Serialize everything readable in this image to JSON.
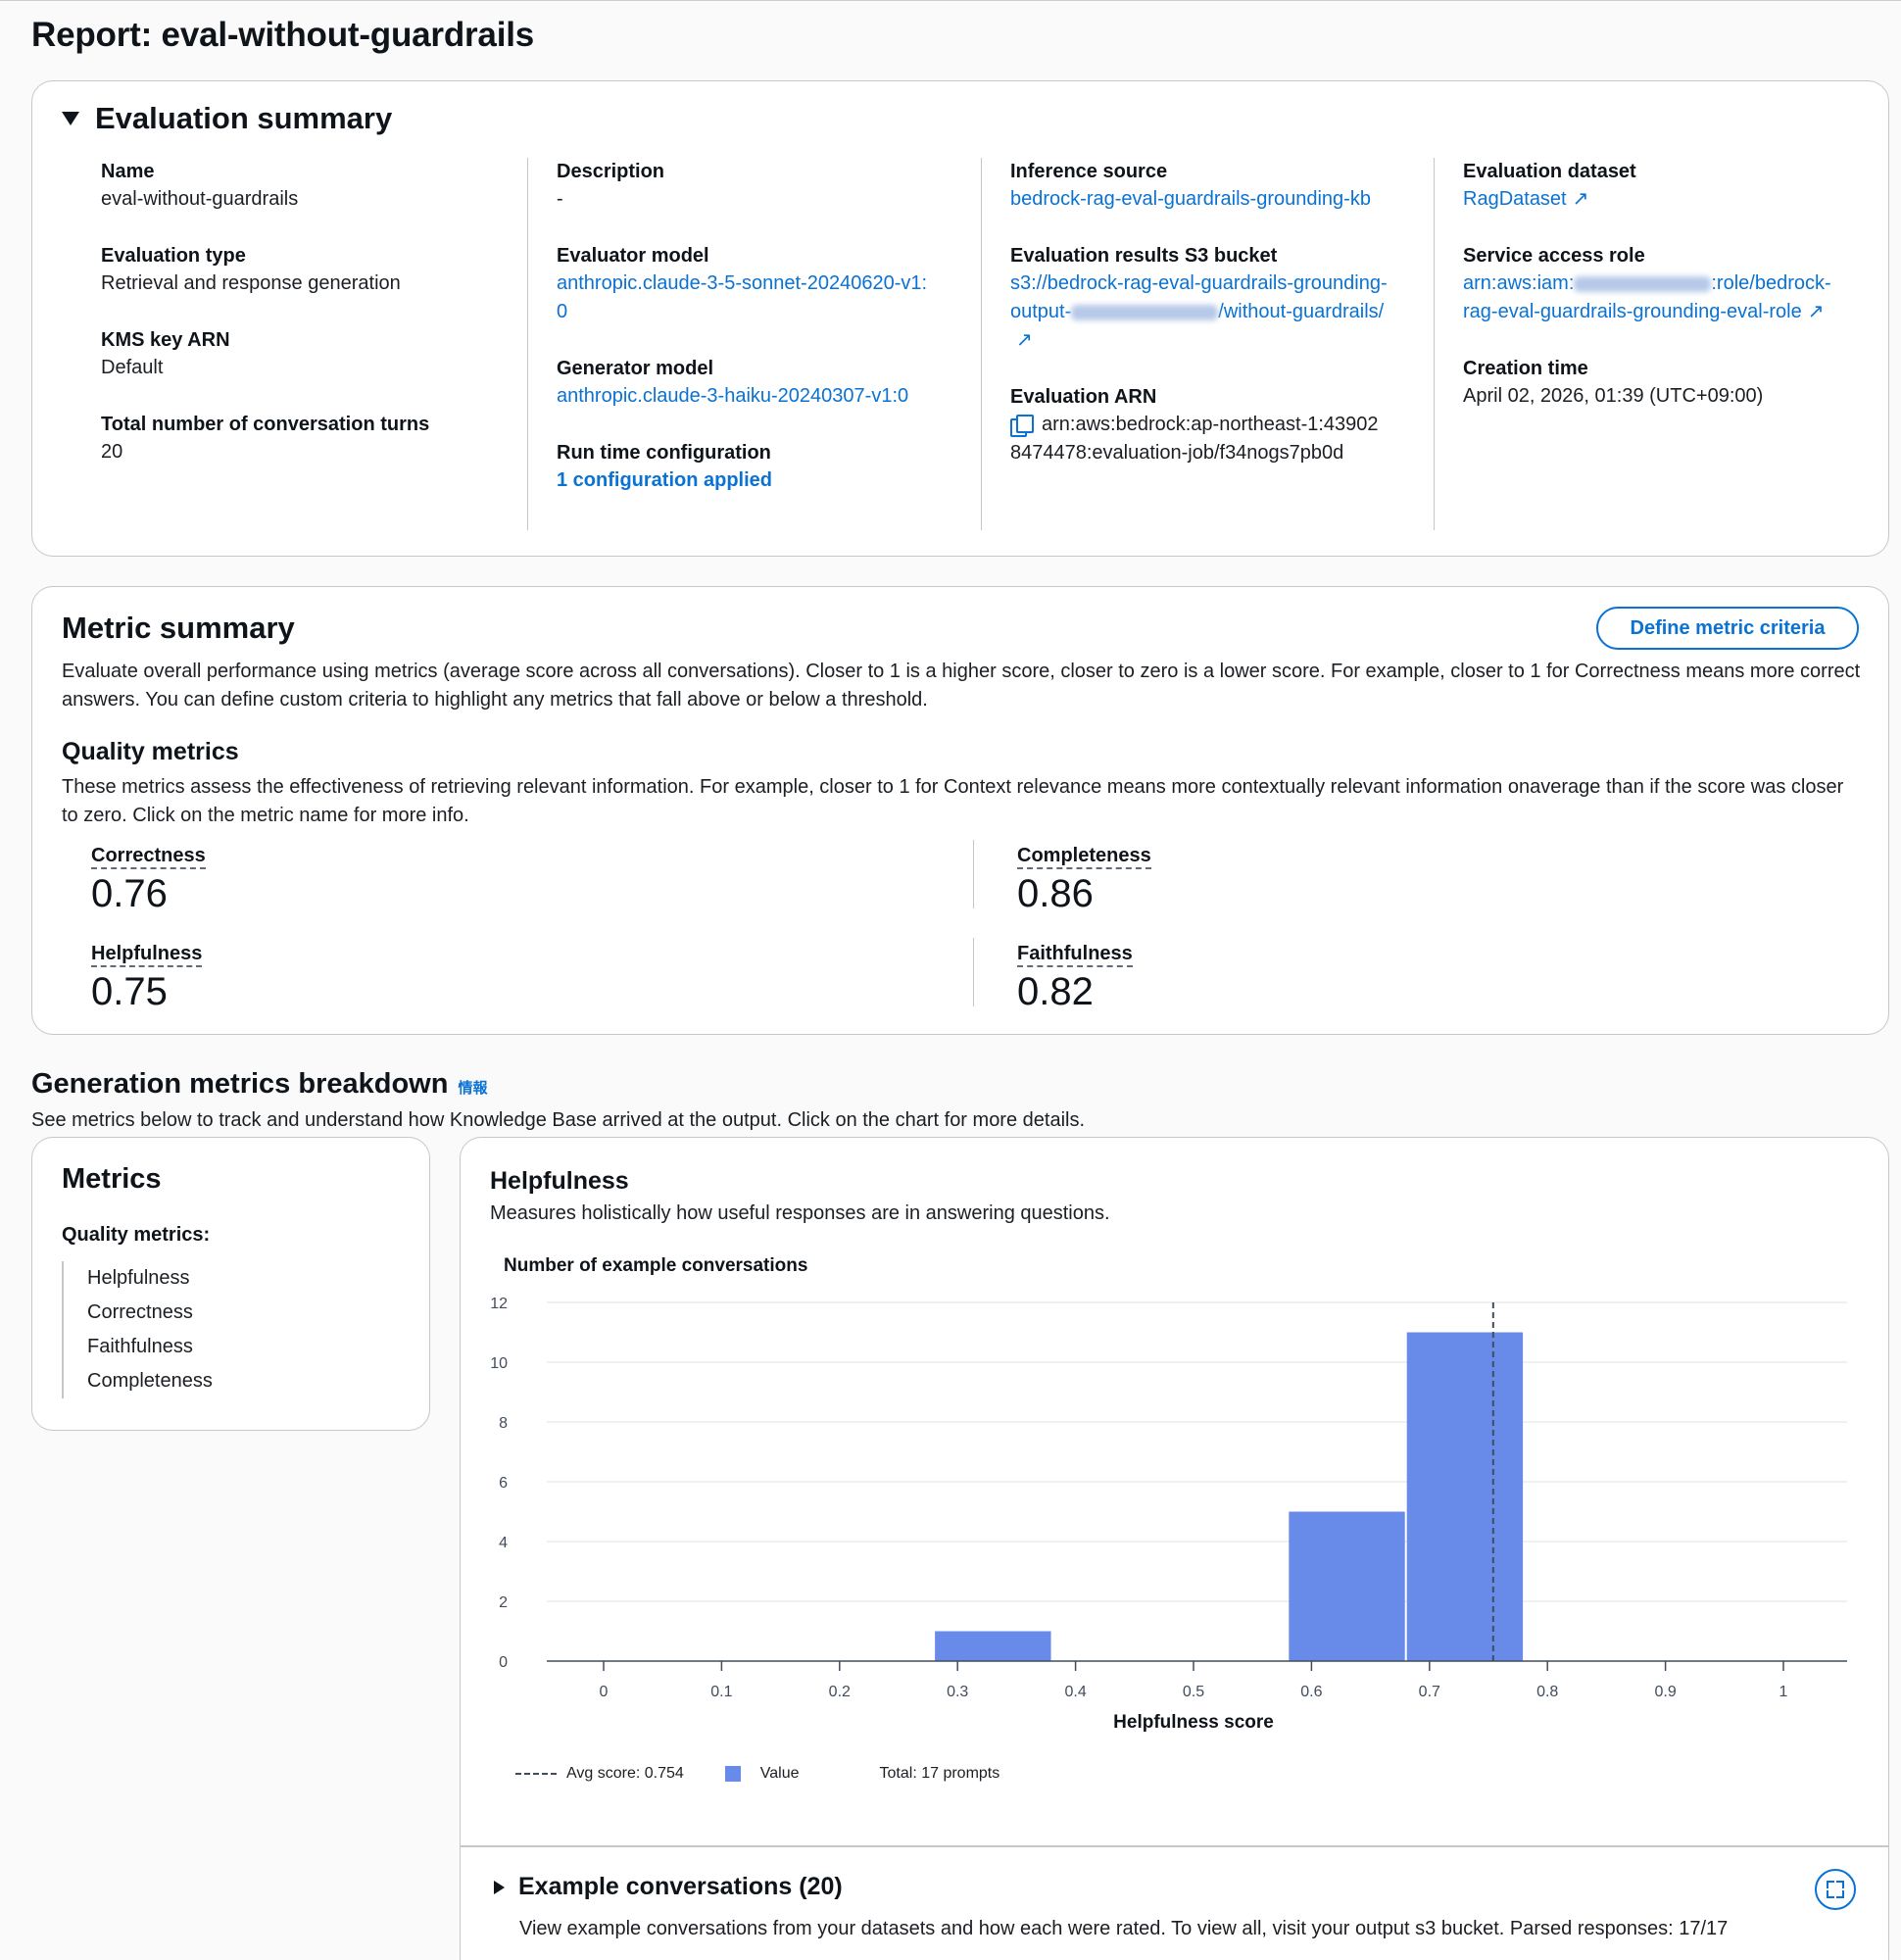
{
  "page": {
    "title": "Report: eval-without-guardrails"
  },
  "evaluation_summary": {
    "title": "Evaluation summary",
    "name_label": "Name",
    "name_value": "eval-without-guardrails",
    "type_label": "Evaluation type",
    "type_value": "Retrieval and response generation",
    "kms_label": "KMS key ARN",
    "kms_value": "Default",
    "turns_label": "Total number of conversation turns",
    "turns_value": "20",
    "description_label": "Description",
    "description_value": "-",
    "evaluator_label": "Evaluator model",
    "evaluator_value": "anthropic.claude-3-5-sonnet-20240620-v1:0",
    "generator_label": "Generator model",
    "generator_value": "anthropic.claude-3-haiku-20240307-v1:0",
    "runtime_label": "Run time configuration",
    "runtime_value": "1 configuration applied",
    "inference_label": "Inference source",
    "inference_value": "bedrock-rag-eval-guardrails-grounding-kb",
    "s3_label": "Evaluation results S3 bucket",
    "s3_value_prefix": "s3://bedrock-rag-eval-guardrails-grounding-output-",
    "s3_value_suffix": "/without-guardrails/",
    "arn_label": "Evaluation ARN",
    "arn_value": "arn:aws:bedrock:ap-northeast-1:439028474478:evaluation-job/f34nogs7pb0d",
    "dataset_label": "Evaluation dataset",
    "dataset_value": "RagDataset",
    "role_label": "Service access role",
    "role_value_prefix": "arn:aws:iam:",
    "role_value_suffix": ":role/bedrock-rag-eval-guardrails-grounding-eval-role",
    "creation_label": "Creation time",
    "creation_value": "April 02, 2026, 01:39 (UTC+09:00)"
  },
  "metric_summary": {
    "title": "Metric summary",
    "button_label": "Define metric criteria",
    "description": "Evaluate overall performance using metrics (average score across all conversations). Closer to 1 is a higher score, closer to zero is a lower score. For example, closer to 1 for Correctness means more correct answers. You can define custom criteria to highlight any metrics that fall above or below a threshold.",
    "quality_title": "Quality metrics",
    "quality_description": "These metrics assess the effectiveness of retrieving relevant information. For example, closer to 1 for Context relevance means more contextually relevant information onaverage than if the score was closer to zero. Click on the metric name for more info.",
    "metrics": [
      {
        "label": "Correctness",
        "value": "0.76"
      },
      {
        "label": "Completeness",
        "value": "0.86"
      },
      {
        "label": "Helpfulness",
        "value": "0.75"
      },
      {
        "label": "Faithfulness",
        "value": "0.82"
      }
    ]
  },
  "breakdown": {
    "title": "Generation metrics breakdown",
    "info_label": "情報",
    "description": "See metrics below to track and understand how Knowledge Base arrived at the output. Click on the chart for more details.",
    "nav": {
      "title": "Metrics",
      "subtitle": "Quality metrics:",
      "items": [
        "Helpfulness",
        "Correctness",
        "Faithfulness",
        "Completeness"
      ]
    },
    "chart_panel": {
      "title": "Helpfulness",
      "description": "Measures holistically how useful responses are in answering questions.",
      "legend_avg": "Avg score: 0.754",
      "legend_value": "Value",
      "legend_total": "Total: 17 prompts"
    },
    "examples": {
      "title": "Example conversations (20)",
      "description": "View example conversations from your datasets and how each were rated. To view all, visit your output s3 bucket. Parsed responses: 17/17"
    }
  },
  "colors": {
    "accent": "#0972d3",
    "bar": "#688ae8",
    "border": "#c6c6cd"
  },
  "icons": [
    "caret-down-icon",
    "external-link-icon",
    "copy-icon",
    "caret-right-icon",
    "expand-icon"
  ],
  "chart_data": {
    "type": "bar",
    "ylabel": "Number of example conversations",
    "xlabel": "Helpfulness score",
    "xlim": [
      0,
      1
    ],
    "ylim": [
      0,
      12
    ],
    "x_ticks": [
      "0",
      "0.1",
      "0.2",
      "0.3",
      "0.4",
      "0.5",
      "0.6",
      "0.7",
      "0.8",
      "0.9",
      "1"
    ],
    "y_ticks": [
      "0",
      "2",
      "4",
      "6",
      "8",
      "10",
      "12"
    ],
    "bins": [
      {
        "x0": 0.28,
        "x1": 0.38,
        "count": 1
      },
      {
        "x0": 0.58,
        "x1": 0.68,
        "count": 5
      },
      {
        "x0": 0.68,
        "x1": 0.78,
        "count": 11
      }
    ],
    "avg_score": 0.754,
    "series": [
      {
        "name": "Value"
      }
    ],
    "grid": true
  }
}
